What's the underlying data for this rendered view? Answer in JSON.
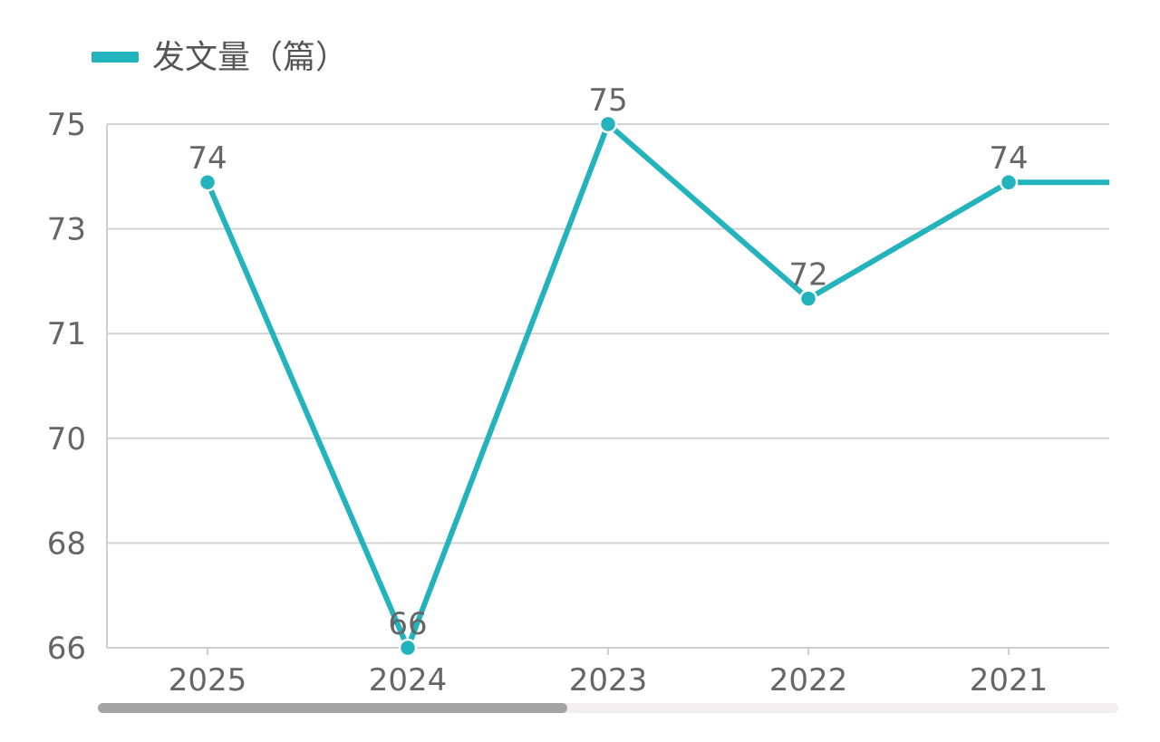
{
  "chart_data": {
    "type": "line",
    "categories": [
      "2025",
      "2024",
      "2023",
      "2022",
      "2021"
    ],
    "series": [
      {
        "name": "发文量（篇）",
        "values": [
          74,
          66,
          75,
          72,
          74
        ],
        "color": "#22b3bd",
        "data_labels": [
          "74",
          "66",
          "75",
          "72",
          "74"
        ]
      }
    ],
    "y_ticks": [
      {
        "label": "75",
        "value": 75
      },
      {
        "label": "73",
        "value": 73.2
      },
      {
        "label": "71",
        "value": 71.4
      },
      {
        "label": "70",
        "value": 69.6
      },
      {
        "label": "68",
        "value": 67.8
      },
      {
        "label": "66",
        "value": 66
      }
    ],
    "ylim": [
      66,
      75
    ],
    "grid": true,
    "legend_position": "top-left",
    "scrollbar": {
      "visible_fraction": 0.46
    },
    "colors": {
      "series": "#22b3bd",
      "grid": "#d2d2d2",
      "text": "#666666",
      "scroll_track": "#f1eef0",
      "scroll_thumb": "#a3a3a3"
    }
  }
}
